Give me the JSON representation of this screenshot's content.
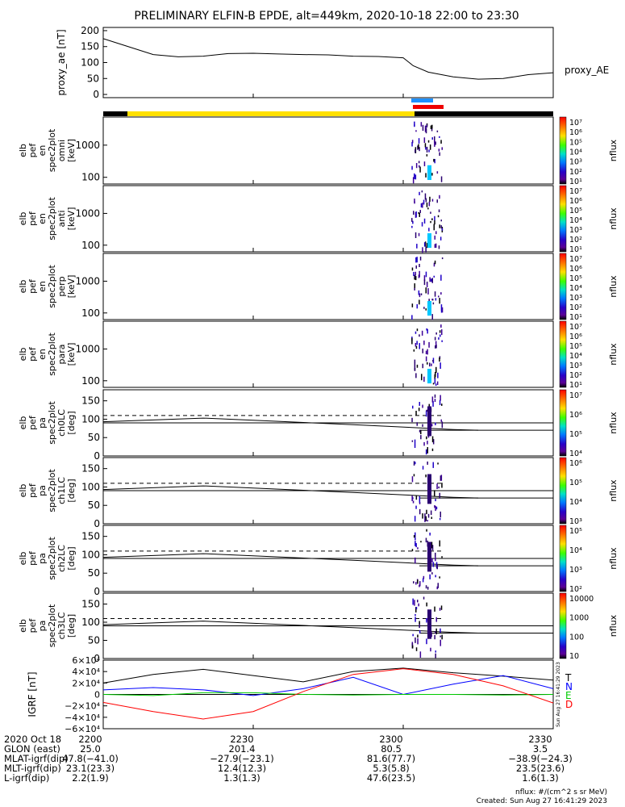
{
  "title": "PRELIMINARY ELFIN-B EPDE, alt=449km, 2020-10-18 22:00 to 23:30",
  "chart_data": [
    {
      "type": "line",
      "ylabel": "proxy_ae [nT]",
      "ylim": [
        -10,
        210
      ],
      "yticks": [
        "200",
        "150",
        "100",
        "50",
        "0"
      ],
      "legend": "proxy_AE",
      "x_minutes": [
        0,
        5,
        10,
        15,
        20,
        25,
        30,
        35,
        40,
        45,
        50,
        55,
        60,
        62,
        65,
        70,
        75,
        80,
        85,
        90
      ],
      "y_values": [
        175,
        150,
        125,
        118,
        120,
        128,
        129,
        127,
        125,
        124,
        120,
        119,
        115,
        90,
        70,
        55,
        48,
        50,
        62,
        68
      ]
    },
    {
      "type": "heatmap",
      "ylabel": [
        "elb",
        "pef",
        "en",
        "spec2plot",
        "omni",
        "[keV]"
      ],
      "yticks": [
        "1000",
        "100"
      ],
      "colorbar_ticks": [
        "10⁷",
        "10⁶",
        "10⁵",
        "10⁴",
        "10³",
        "10²",
        "10¹"
      ],
      "colorbar_label": "nflux"
    },
    {
      "type": "heatmap",
      "ylabel": [
        "elb",
        "pef",
        "en",
        "spec2plot",
        "anti",
        "[keV]"
      ],
      "yticks": [
        "1000",
        "100"
      ],
      "colorbar_ticks": [
        "10⁷",
        "10⁶",
        "10⁵",
        "10⁴",
        "10³",
        "10²",
        "10¹"
      ],
      "colorbar_label": "nflux"
    },
    {
      "type": "heatmap",
      "ylabel": [
        "elb",
        "pef",
        "en",
        "spec2plot",
        "perp",
        "[keV]"
      ],
      "yticks": [
        "1000",
        "100"
      ],
      "colorbar_ticks": [
        "10⁷",
        "10⁶",
        "10⁵",
        "10⁴",
        "10³",
        "10²",
        "10¹"
      ],
      "colorbar_label": "nflux"
    },
    {
      "type": "heatmap",
      "ylabel": [
        "elb",
        "pef",
        "en",
        "spec2plot",
        "para",
        "[keV]"
      ],
      "yticks": [
        "1000",
        "100"
      ],
      "colorbar_ticks": [
        "10⁷",
        "10⁶",
        "10⁵",
        "10⁴",
        "10³",
        "10²",
        "10¹"
      ],
      "colorbar_label": "nflux"
    },
    {
      "type": "heatmap",
      "ylabel": [
        "elb",
        "pef",
        "pa",
        "spec2plot",
        "ch0LC",
        "[deg]"
      ],
      "yticks": [
        "150",
        "100",
        "50",
        "0"
      ],
      "colorbar_ticks": [
        "10⁷",
        "10⁶",
        "10⁵",
        "10⁴"
      ],
      "colorbar_label": "nflux"
    },
    {
      "type": "heatmap",
      "ylabel": [
        "elb",
        "pef",
        "pa",
        "spec2plot",
        "ch1LC",
        "[deg]"
      ],
      "yticks": [
        "150",
        "100",
        "50",
        "0"
      ],
      "colorbar_ticks": [
        "10⁶",
        "10⁵",
        "10⁴",
        "10³"
      ],
      "colorbar_label": "nflux"
    },
    {
      "type": "heatmap",
      "ylabel": [
        "elb",
        "pef",
        "pa",
        "spec2plot",
        "ch2LC",
        "[deg]"
      ],
      "yticks": [
        "150",
        "100",
        "50",
        "0"
      ],
      "colorbar_ticks": [
        "10⁵",
        "10⁴",
        "10³",
        "10²"
      ],
      "colorbar_label": "nflux"
    },
    {
      "type": "heatmap",
      "ylabel": [
        "elb",
        "pef",
        "pa",
        "spec2plot",
        "ch3LC",
        "[deg]"
      ],
      "yticks": [
        "150",
        "100",
        "50",
        "0"
      ],
      "colorbar_ticks": [
        "10000",
        "1000",
        "100",
        "10"
      ],
      "colorbar_label": "nflux"
    },
    {
      "type": "line",
      "ylabel": "IGRF [nT]",
      "yticks": [
        "6×10⁴",
        "4×10⁴",
        "2×10⁴",
        "0",
        "−2×10⁴",
        "−4×10⁴",
        "−6×10⁴"
      ],
      "ylim": [
        -60000,
        60000
      ],
      "legend": [
        "T",
        "N",
        "E",
        "D"
      ],
      "x_minutes": [
        0,
        10,
        20,
        30,
        40,
        50,
        60,
        70,
        80,
        90
      ],
      "series": [
        {
          "name": "T",
          "color": "#000000",
          "values": [
            20000,
            35000,
            44000,
            33000,
            22000,
            40000,
            46000,
            38000,
            32000,
            25000
          ]
        },
        {
          "name": "N",
          "color": "#0000ff",
          "values": [
            8000,
            12000,
            8000,
            -2000,
            10000,
            30000,
            0,
            18000,
            33000,
            10000
          ]
        },
        {
          "name": "E",
          "color": "#00cc00",
          "values": [
            0,
            -2000,
            3000,
            3000,
            0,
            -1000,
            0,
            0,
            -1000,
            0
          ]
        },
        {
          "name": "D",
          "color": "#ff0000",
          "values": [
            -14000,
            -30000,
            -43000,
            -30000,
            5000,
            35000,
            45000,
            35000,
            15000,
            -15000
          ]
        }
      ]
    }
  ],
  "time_axis": {
    "labels": [
      "2200",
      "2230",
      "2300",
      "2330"
    ],
    "footer": [
      {
        "name": "2020 Oct 18",
        "values": [
          "2200",
          "2230",
          "2300",
          "2330"
        ]
      },
      {
        "name": "GLON (east)",
        "values": [
          "25.0",
          "201.4",
          "80.5",
          "3.5"
        ]
      },
      {
        "name": "MLAT-igrf(dip)",
        "values": [
          "47.8(−41.0)",
          "−27.9(−23.1)",
          "81.6(77.7)",
          "−38.9(−24.3)"
        ]
      },
      {
        "name": "MLT-igrf(dip)",
        "values": [
          "23.1(23.3)",
          "12.4(12.3)",
          "5.3(5.8)",
          "23.5(23.6)"
        ]
      },
      {
        "name": "L-igrf(dip)",
        "values": [
          "2.2(1.9)",
          "1.3(1.3)",
          "47.6(23.5)",
          "1.6(1.3)"
        ]
      }
    ]
  },
  "notes": {
    "units": "nflux: #/(cm^2 s sr MeV)",
    "created": "Created: Sun Aug 27 16:41:29 2023",
    "side_stamp": "Sun Aug 27 16:41:29 2023"
  },
  "colors": {
    "colorbar": [
      "#ff0000",
      "#ff6400",
      "#ffd200",
      "#78ff00",
      "#00ff64",
      "#00c8ff",
      "#0064ff",
      "#1e00c8",
      "#4b0096",
      "#000000"
    ],
    "sunlit_bar": "#ffe000",
    "eclipse_bar": "#000000",
    "science_zone_blue": "#1e90ff",
    "science_zone_red": "#ee0000"
  }
}
